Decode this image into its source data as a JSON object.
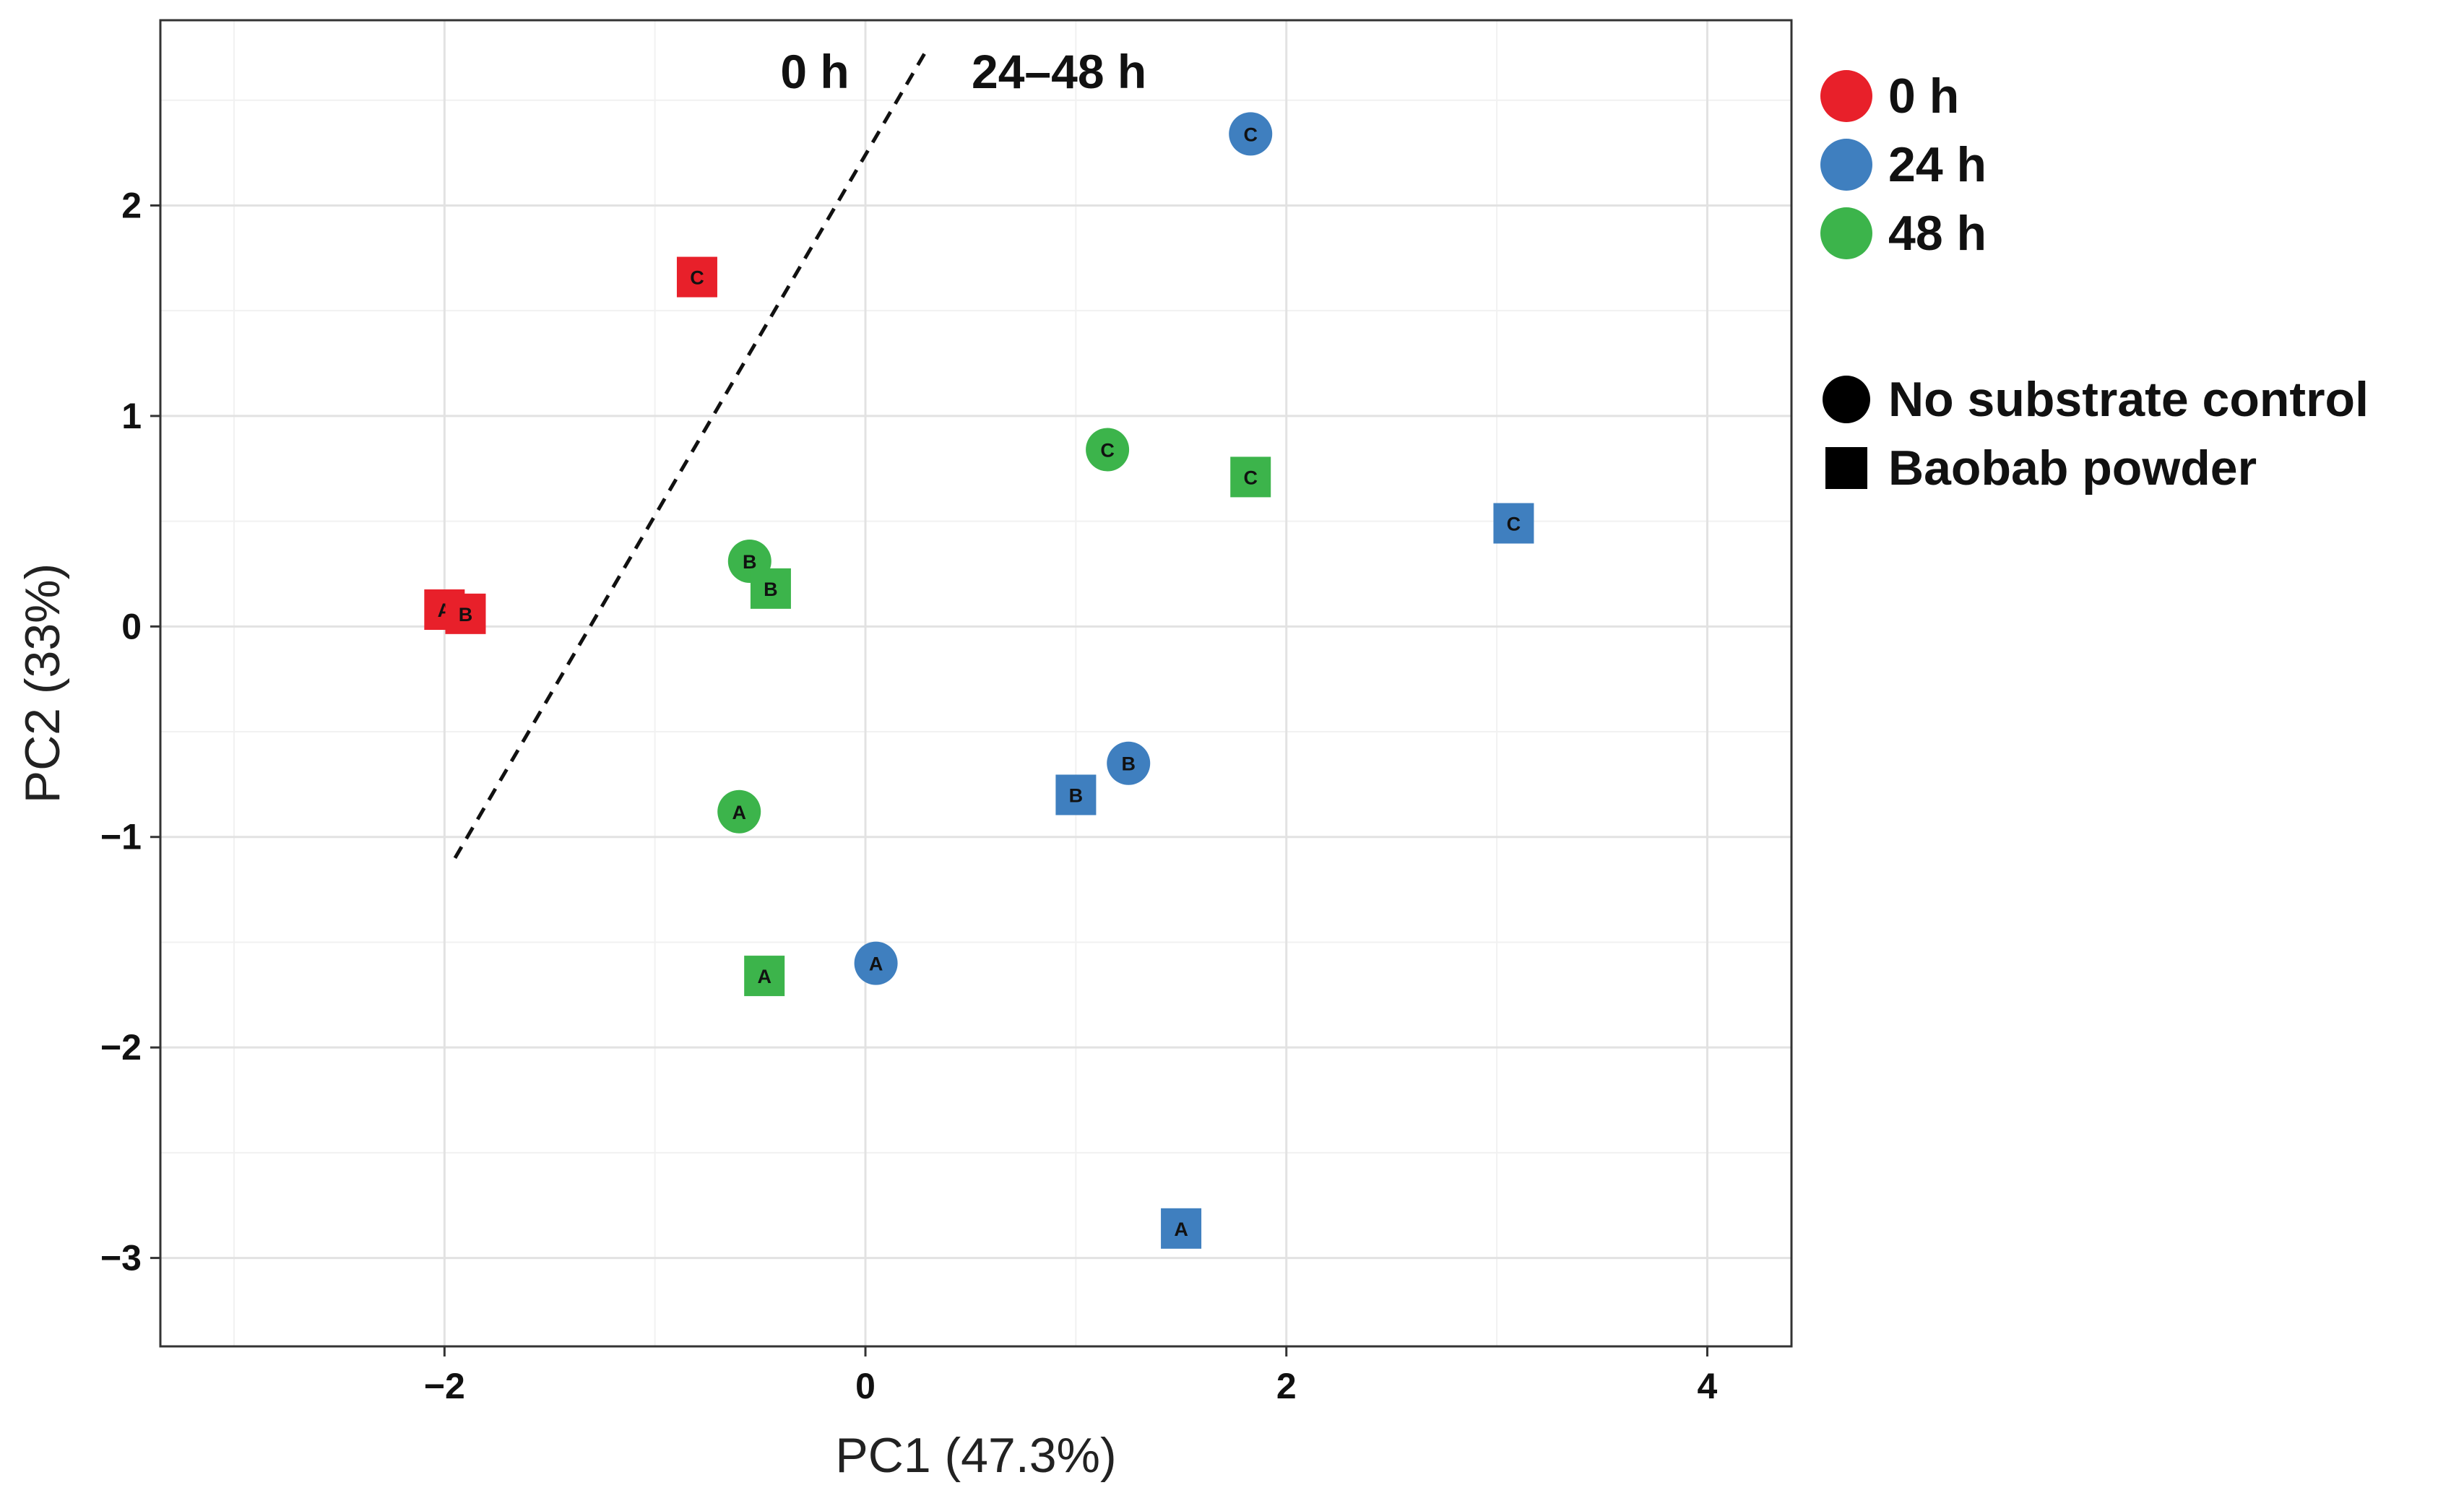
{
  "chart_data": {
    "type": "scatter",
    "xlabel": "PC1 (47.3%)",
    "ylabel": "PC2 (33%)",
    "xlim": [
      -3.35,
      4.4
    ],
    "ylim": [
      -3.42,
      2.88
    ],
    "xticks": [
      -2,
      0,
      2,
      4
    ],
    "xtick_labels": [
      "−2",
      "0",
      "2",
      "4"
    ],
    "yticks": [
      -3,
      -2,
      -1,
      0,
      1,
      2
    ],
    "ytick_labels": [
      "−3",
      "−2",
      "−1",
      "0",
      "1",
      "2"
    ],
    "grid": true,
    "annotations": {
      "left_label": "0 h",
      "right_label": "24–48 h",
      "divider": {
        "from": [
          -1.95,
          -1.1
        ],
        "to": [
          0.28,
          2.72
        ],
        "style": "dashed"
      }
    },
    "legend": {
      "placement": "right",
      "time": [
        {
          "name": "0 h",
          "color": "#e8202a"
        },
        {
          "name": "24 h",
          "color": "#3f7fbf"
        },
        {
          "name": "48 h",
          "color": "#3cb44b"
        }
      ],
      "treatment": [
        {
          "name": "No substrate control",
          "shape": "circle"
        },
        {
          "name": "Baobab powder",
          "shape": "square"
        }
      ]
    },
    "points": [
      {
        "x": -2.0,
        "y": 0.08,
        "label": "A",
        "time": "0 h",
        "shape": "square"
      },
      {
        "x": -1.9,
        "y": 0.06,
        "label": "B",
        "time": "0 h",
        "shape": "square"
      },
      {
        "x": -0.8,
        "y": 1.66,
        "label": "C",
        "time": "0 h",
        "shape": "square"
      },
      {
        "x": 0.05,
        "y": -1.6,
        "label": "A",
        "time": "24 h",
        "shape": "circle"
      },
      {
        "x": 1.25,
        "y": -0.65,
        "label": "B",
        "time": "24 h",
        "shape": "circle"
      },
      {
        "x": 1.83,
        "y": 2.34,
        "label": "C",
        "time": "24 h",
        "shape": "circle"
      },
      {
        "x": 1.5,
        "y": -2.86,
        "label": "A",
        "time": "24 h",
        "shape": "square"
      },
      {
        "x": 1.0,
        "y": -0.8,
        "label": "B",
        "time": "24 h",
        "shape": "square"
      },
      {
        "x": 3.08,
        "y": 0.49,
        "label": "C",
        "time": "24 h",
        "shape": "square"
      },
      {
        "x": -0.6,
        "y": -0.88,
        "label": "A",
        "time": "48 h",
        "shape": "circle"
      },
      {
        "x": -0.55,
        "y": 0.31,
        "label": "B",
        "time": "48 h",
        "shape": "circle"
      },
      {
        "x": 1.15,
        "y": 0.84,
        "label": "C",
        "time": "48 h",
        "shape": "circle"
      },
      {
        "x": -0.48,
        "y": -1.66,
        "label": "A",
        "time": "48 h",
        "shape": "square"
      },
      {
        "x": -0.45,
        "y": 0.18,
        "label": "B",
        "time": "48 h",
        "shape": "square"
      },
      {
        "x": 1.83,
        "y": 0.71,
        "label": "C",
        "time": "48 h",
        "shape": "square"
      }
    ]
  }
}
